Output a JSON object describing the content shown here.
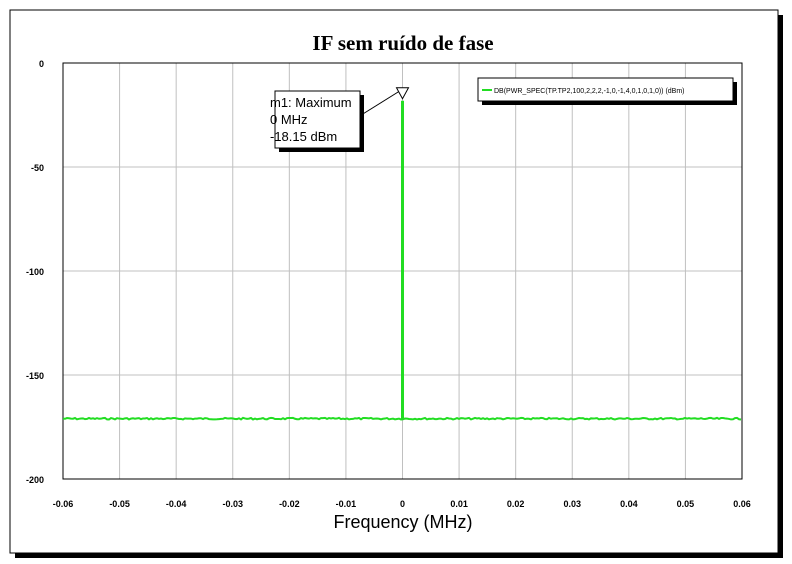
{
  "chart_data": {
    "type": "line",
    "title": "IF sem ruído de fase",
    "xlabel": "Frequency (MHz)",
    "ylabel": "",
    "xlim": [
      -0.06,
      0.06
    ],
    "ylim": [
      -200,
      0
    ],
    "x_ticks": [
      "-0.06",
      "-0.05",
      "-0.04",
      "-0.03",
      "-0.02",
      "-0.01",
      "0",
      "0.01",
      "0.02",
      "0.03",
      "0.04",
      "0.05",
      "0.06"
    ],
    "y_ticks": [
      "0",
      "-50",
      "-100",
      "-150",
      "-200"
    ],
    "grid": true,
    "legend_position": "top-right",
    "series": [
      {
        "name": "DB(PWR_SPEC(TP.TP2,100,2,2,2,-1,0,-1,4,0,1,0,1,0)) (dBm)",
        "color": "#22dd22",
        "noise_floor": -171,
        "peak": {
          "x": 0,
          "y": -18.15
        }
      }
    ],
    "marker": {
      "label_line1": "m1: Maximum",
      "label_line2": "0 MHz",
      "label_line3": "-18.15 dBm",
      "x": 0,
      "y": -18.15
    }
  }
}
